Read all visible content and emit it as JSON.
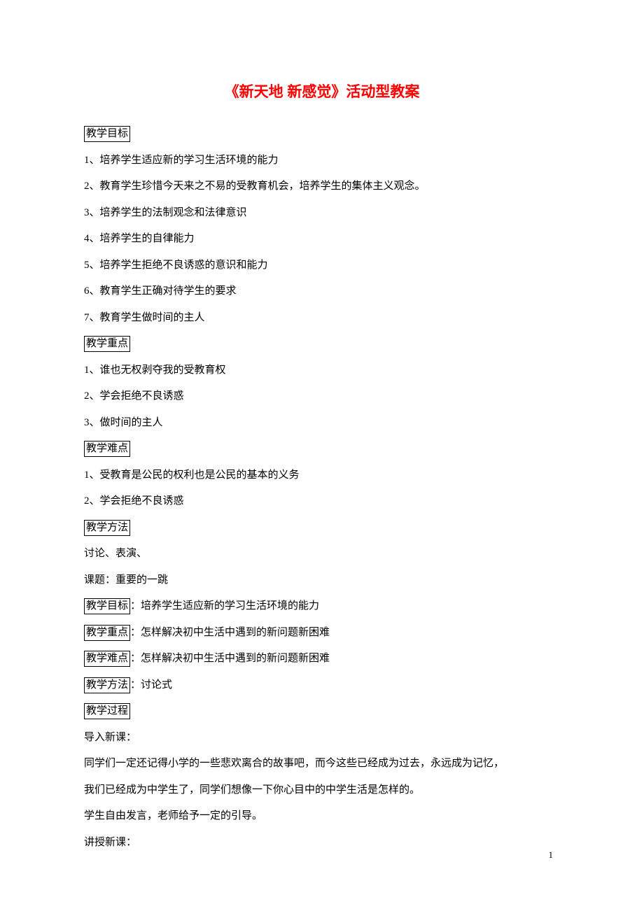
{
  "title": "《新天地 新感觉》活动型教案",
  "sections": [
    {
      "boxed": "教学目标",
      "rest": ""
    },
    {
      "boxed": "",
      "rest": "1、培养学生适应新的学习生活环境的能力"
    },
    {
      "boxed": "",
      "rest": "2、教育学生珍惜今天来之不易的受教育机会，培养学生的集体主义观念。"
    },
    {
      "boxed": "",
      "rest": "3、培养学生的法制观念和法律意识"
    },
    {
      "boxed": "",
      "rest": "4、培养学生的自律能力"
    },
    {
      "boxed": "",
      "rest": "5、培养学生拒绝不良诱惑的意识和能力"
    },
    {
      "boxed": "",
      "rest": "6、教育学生正确对待学生的要求"
    },
    {
      "boxed": "",
      "rest": "7、教育学生做时间的主人"
    },
    {
      "boxed": "教学重点",
      "rest": ""
    },
    {
      "boxed": "",
      "rest": "1、谁也无权剥夺我的受教育权"
    },
    {
      "boxed": "",
      "rest": "2、学会拒绝不良诱惑"
    },
    {
      "boxed": "",
      "rest": "3、做时间的主人"
    },
    {
      "boxed": "教学难点",
      "rest": ""
    },
    {
      "boxed": "",
      "rest": "1、受教育是公民的权利也是公民的基本的义务"
    },
    {
      "boxed": "",
      "rest": "2、学会拒绝不良诱惑"
    },
    {
      "boxed": "教学方法",
      "rest": ""
    },
    {
      "boxed": "",
      "rest": "讨论、表演、"
    },
    {
      "boxed": "",
      "rest": "课题：重要的一跳"
    },
    {
      "boxed": "教学目标",
      "rest": "：培养学生适应新的学习生活环境的能力"
    },
    {
      "boxed": "教学重点",
      "rest": "：怎样解决初中生活中遇到的新问题新困难"
    },
    {
      "boxed": "教学难点",
      "rest": "：怎样解决初中生活中遇到的新问题新困难"
    },
    {
      "boxed": "教学方法",
      "rest": "：讨论式"
    },
    {
      "boxed": "教学过程",
      "rest": ""
    },
    {
      "boxed": "",
      "rest": "导入新课："
    },
    {
      "boxed": "",
      "rest": "同学们一定还记得小学的一些悲欢离合的故事吧，而今这些已经成为过去，永远成为记忆，"
    },
    {
      "boxed": "",
      "rest": "我们已经成为中学生了，同学们想像一下你心目中的中学生活是怎样的。"
    },
    {
      "boxed": "",
      "rest": "学生自由发言，老师给予一定的引导。"
    },
    {
      "boxed": "",
      "rest": "讲授新课："
    }
  ],
  "pageNumber": "1"
}
